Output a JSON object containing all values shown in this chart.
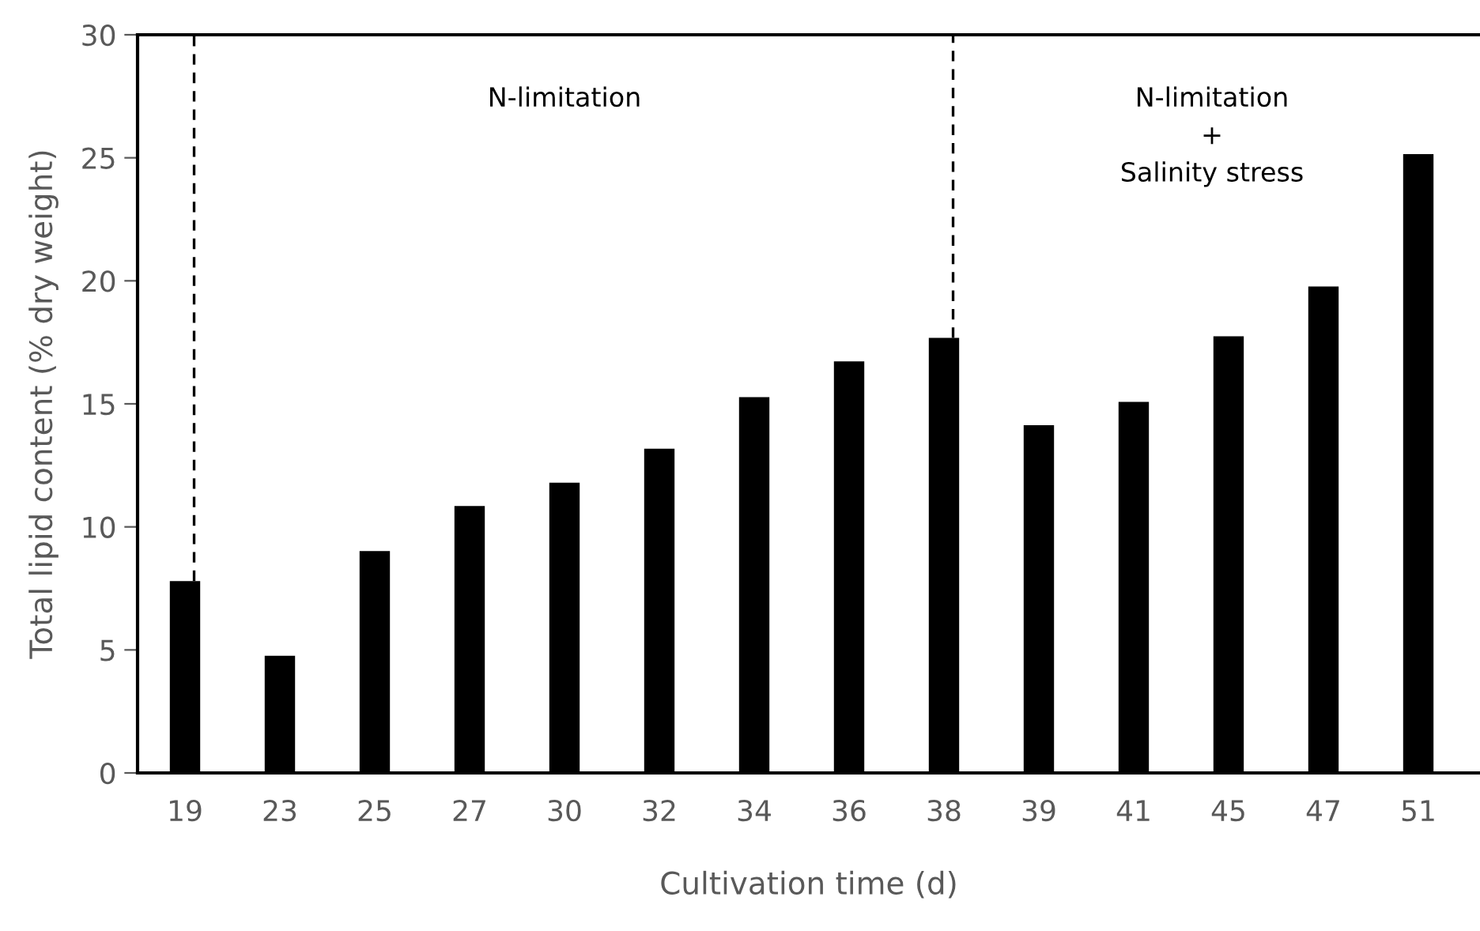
{
  "chart_data": {
    "type": "bar",
    "xlabel": "Cultivation time (d)",
    "ylabel": "Total lipid content (% dry weight)",
    "categories": [
      "19",
      "23",
      "25",
      "27",
      "30",
      "32",
      "34",
      "36",
      "38",
      "39",
      "41",
      "45",
      "47",
      "51"
    ],
    "values": [
      7.8,
      4.76,
      9.02,
      10.85,
      11.8,
      13.18,
      15.27,
      16.73,
      17.68,
      14.13,
      15.08,
      17.75,
      19.77,
      25.15
    ],
    "color": "#000000",
    "ylim": [
      0,
      30
    ],
    "yticks": [
      0,
      5,
      10,
      15,
      20,
      25,
      30
    ],
    "grid": false,
    "ref_lines": [
      {
        "axis": "x",
        "value": "19",
        "line_style": "dashed",
        "color": "#000000"
      },
      {
        "axis": "x",
        "value": "38",
        "line_style": "dashed",
        "color": "#000000"
      }
    ],
    "annotations": [
      "N-limitation",
      "N-limitation\n+\nSalinity stress"
    ]
  }
}
